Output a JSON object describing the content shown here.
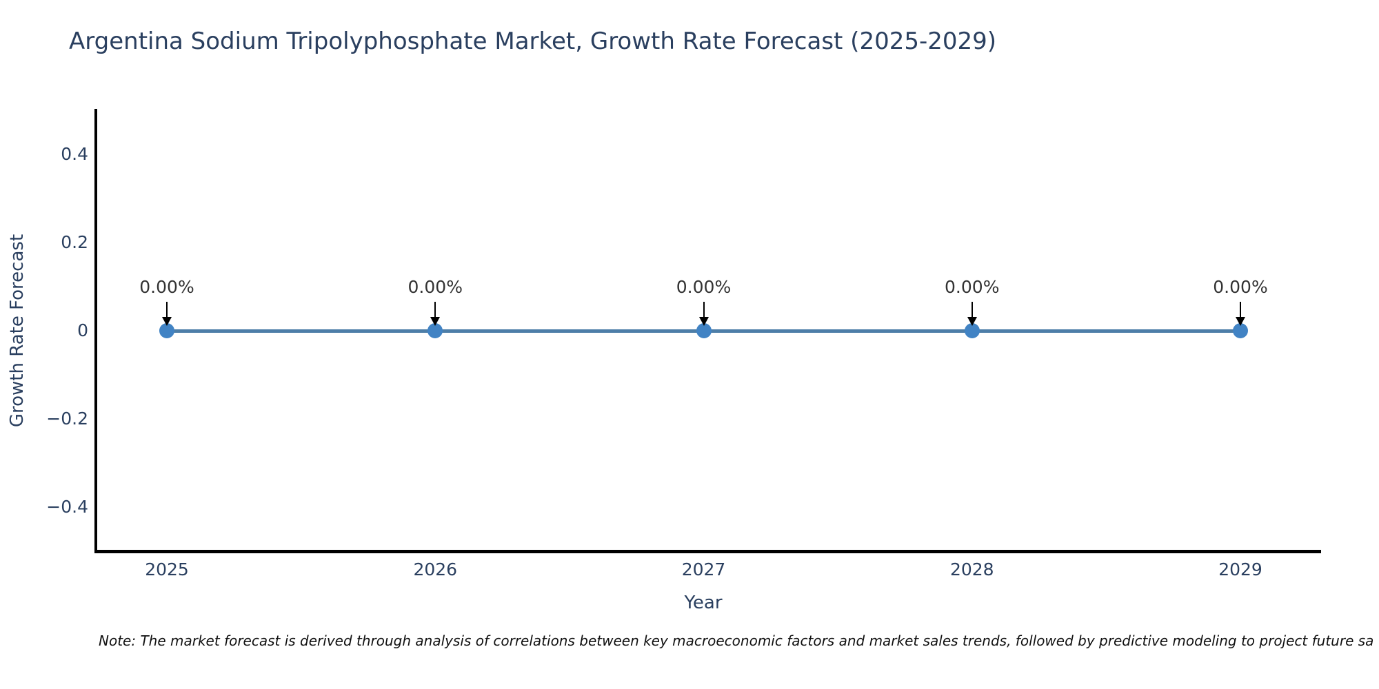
{
  "title": "Argentina Sodium Tripolyphosphate Market, Growth Rate Forecast (2025-2029)",
  "note": "Note: The market forecast is derived through analysis of correlations between key macroeconomic factors and market sales trends, followed by predictive modeling to project future sa",
  "chart_data": {
    "type": "line",
    "title": "Argentina Sodium Tripolyphosphate Market, Growth Rate Forecast (2025-2029)",
    "xlabel": "Year",
    "ylabel": "Growth Rate Forecast",
    "categories": [
      "2025",
      "2026",
      "2027",
      "2028",
      "2029"
    ],
    "series": [
      {
        "name": "Growth Rate Forecast",
        "values": [
          0,
          0,
          0,
          0,
          0
        ]
      }
    ],
    "point_labels": [
      "0.00%",
      "0.00%",
      "0.00%",
      "0.00%",
      "0.00%"
    ],
    "ylim": [
      -0.5,
      0.5
    ],
    "yticks": [
      0.4,
      0.2,
      0,
      -0.2,
      -0.4
    ],
    "grid": false,
    "legend_position": "none",
    "colors": {
      "line": "#4d7ea8",
      "marker": "#4183c4",
      "axis": "#000000",
      "text": "#2a3f5f",
      "annotation_text": "#333333",
      "arrow": "#000000",
      "background": "#ffffff"
    }
  }
}
